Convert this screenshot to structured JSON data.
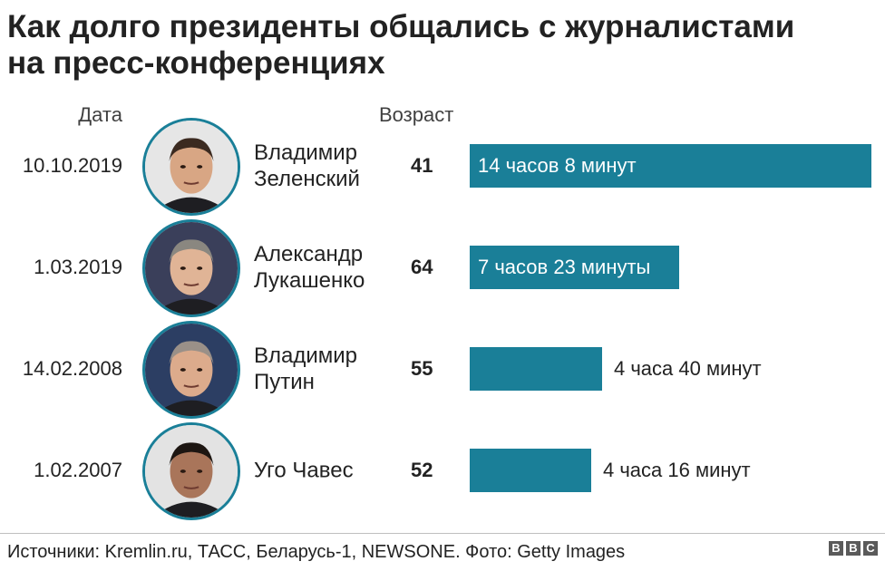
{
  "title_lines": [
    "Как долго президенты общались с журналистами",
    "на пресс-конференциях"
  ],
  "columns": {
    "date": "Дата",
    "age": "Возраст"
  },
  "colors": {
    "bar": "#1a7f98",
    "photo_ring": "#1a7f98",
    "text": "#222222"
  },
  "chart_data": {
    "type": "bar",
    "orientation": "horizontal",
    "unit": "minutes",
    "categories": [
      "Владимир Зеленский",
      "Александр Лукашенко",
      "Владимир Путин",
      "Уго Чавес"
    ],
    "values": [
      848,
      443,
      280,
      256
    ],
    "rows": [
      {
        "date": "10.10.2019",
        "name_lines": [
          "Владимир",
          "Зеленский"
        ],
        "age": "41",
        "minutes": 848,
        "duration": "14 часов 8 минут",
        "photo": "zelensky-photo"
      },
      {
        "date": "1.03.2019",
        "name_lines": [
          "Александр",
          "Лукашенко"
        ],
        "age": "64",
        "minutes": 443,
        "duration": "7 часов 23 минуты",
        "photo": "lukashenko-photo"
      },
      {
        "date": "14.02.2008",
        "name_lines": [
          "Владимир",
          "Путин"
        ],
        "age": "55",
        "minutes": 280,
        "duration": "4 часа 40 минут",
        "photo": "putin-photo"
      },
      {
        "date": "1.02.2007",
        "name_lines": [
          "Уго Чавес"
        ],
        "age": "52",
        "minutes": 256,
        "duration": "4 часа 16 минут",
        "photo": "chavez-photo"
      }
    ]
  },
  "footer": {
    "source": "Источники: Kremlin.ru, ТАСС, Беларусь-1, NEWSONE. Фото: Getty Images",
    "logo_letters": [
      "B",
      "B",
      "C"
    ]
  }
}
